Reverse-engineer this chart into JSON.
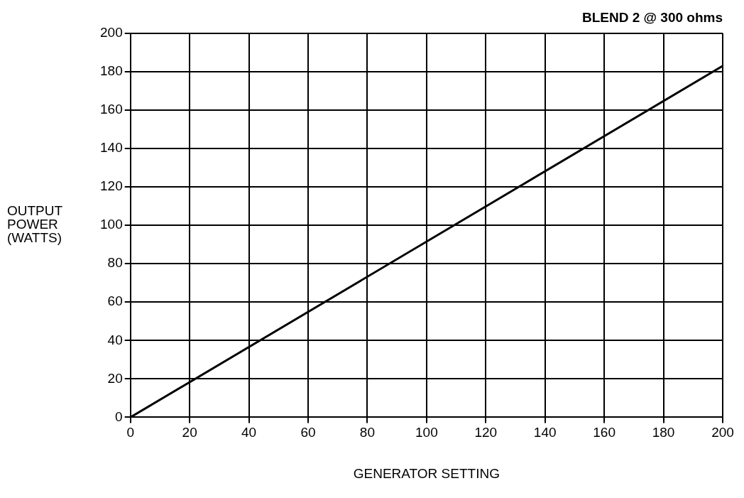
{
  "chart_data": {
    "type": "line",
    "title": "BLEND 2 @ 300 ohms",
    "xlabel": "GENERATOR SETTING",
    "ylabel": "OUTPUT POWER (WATTS)",
    "x": [
      0,
      200
    ],
    "series": [
      {
        "color": "#000000",
        "values": [
          0,
          183
        ]
      }
    ],
    "xlim": [
      0,
      200
    ],
    "xticks": [
      0,
      20,
      40,
      60,
      80,
      100,
      120,
      140,
      160,
      180,
      200
    ],
    "ylim": [
      0,
      200
    ],
    "yticks": [
      0,
      20,
      40,
      60,
      80,
      100,
      120,
      140,
      160,
      180,
      200
    ],
    "grid": true,
    "marker": "none",
    "line_style": "solid"
  }
}
